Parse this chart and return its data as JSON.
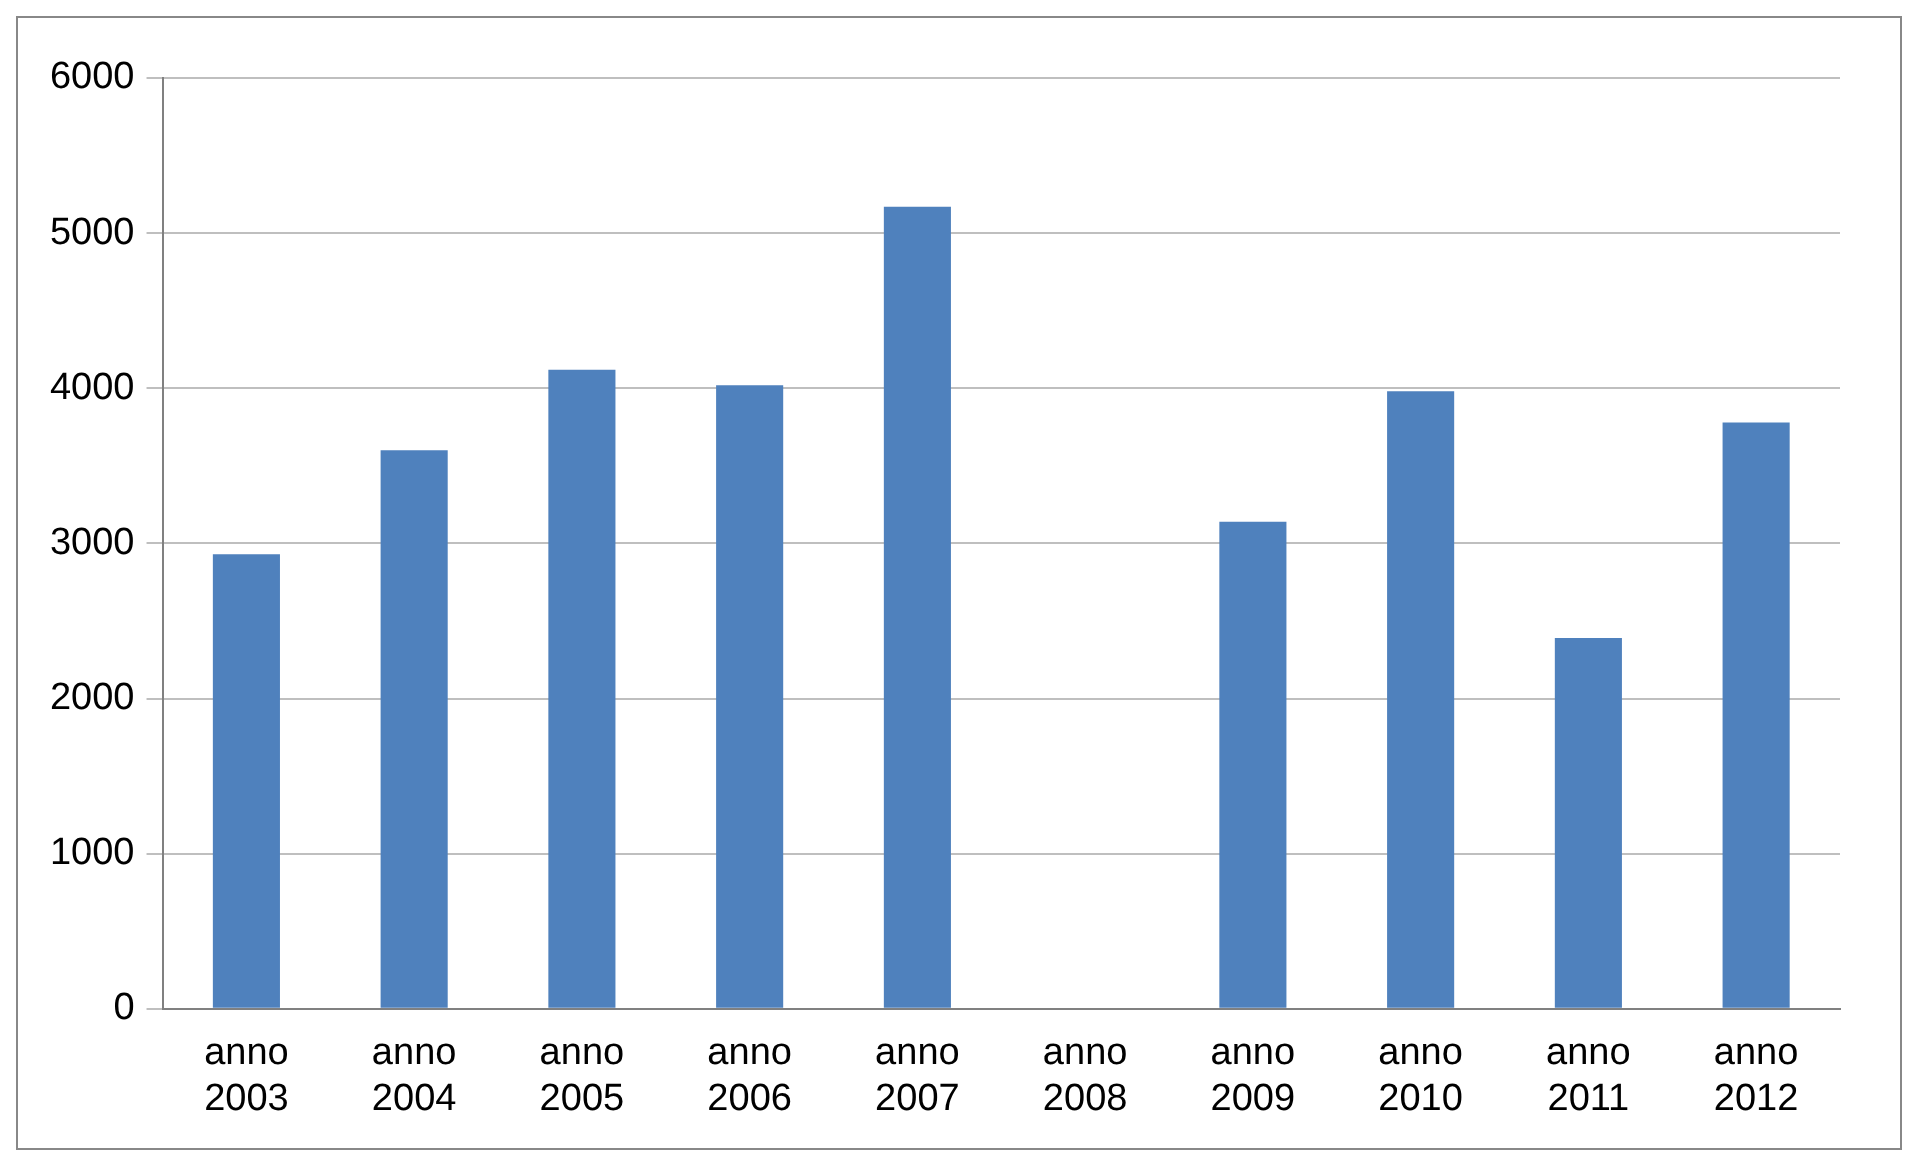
{
  "chart_data": {
    "type": "bar",
    "categories": [
      "anno 2003",
      "anno 2004",
      "anno 2005",
      "anno 2006",
      "anno 2007",
      "anno 2008",
      "anno 2009",
      "anno 2010",
      "anno 2011",
      "anno 2012"
    ],
    "values": [
      2930,
      3600,
      4120,
      4020,
      5170,
      null,
      3140,
      3980,
      2390,
      3780
    ],
    "color": "#4f81bd",
    "ylim": [
      0,
      6000
    ],
    "yticks": [
      0,
      1000,
      2000,
      3000,
      4000,
      5000,
      6000
    ],
    "grid": "y",
    "legend": false
  }
}
